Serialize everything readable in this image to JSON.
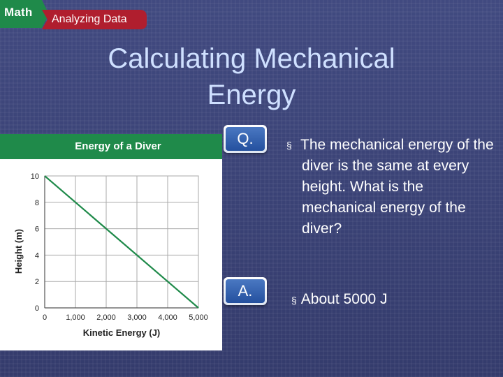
{
  "header": {
    "subject_label": "Math",
    "section_label": "Analyzing Data"
  },
  "title": {
    "line1": "Calculating Mechanical",
    "line2": "Energy"
  },
  "chart_data": {
    "type": "line",
    "title": "Energy of a Diver",
    "xlabel": "Kinetic Energy (J)",
    "ylabel": "Height (m)",
    "xlim": [
      0,
      5000
    ],
    "ylim": [
      0,
      10
    ],
    "x_ticks": [
      0,
      1000,
      2000,
      3000,
      4000,
      5000
    ],
    "x_tick_labels": [
      "0",
      "1,000",
      "2,000",
      "3,000",
      "4,000",
      "5,000"
    ],
    "y_ticks": [
      0,
      2,
      4,
      6,
      8,
      10
    ],
    "y_tick_labels": [
      "0",
      "2",
      "4",
      "6",
      "8",
      "10"
    ],
    "grid": true,
    "series": [
      {
        "color": "#1f8a4a",
        "x": [
          0,
          5000
        ],
        "y": [
          10,
          0
        ]
      }
    ]
  },
  "qa": {
    "q_badge": "Q.",
    "a_badge": "A.",
    "bullet_glyph": "§",
    "question_text": "The mechanical energy of the diver is the same at every height. What is the mechanical energy of the diver?",
    "answer_text": "About 5000 J"
  },
  "colors": {
    "background": "#3a4275",
    "title_text": "#cfe0ff",
    "accent_green": "#1f8a4a",
    "badge_red": "#b01e2e"
  }
}
